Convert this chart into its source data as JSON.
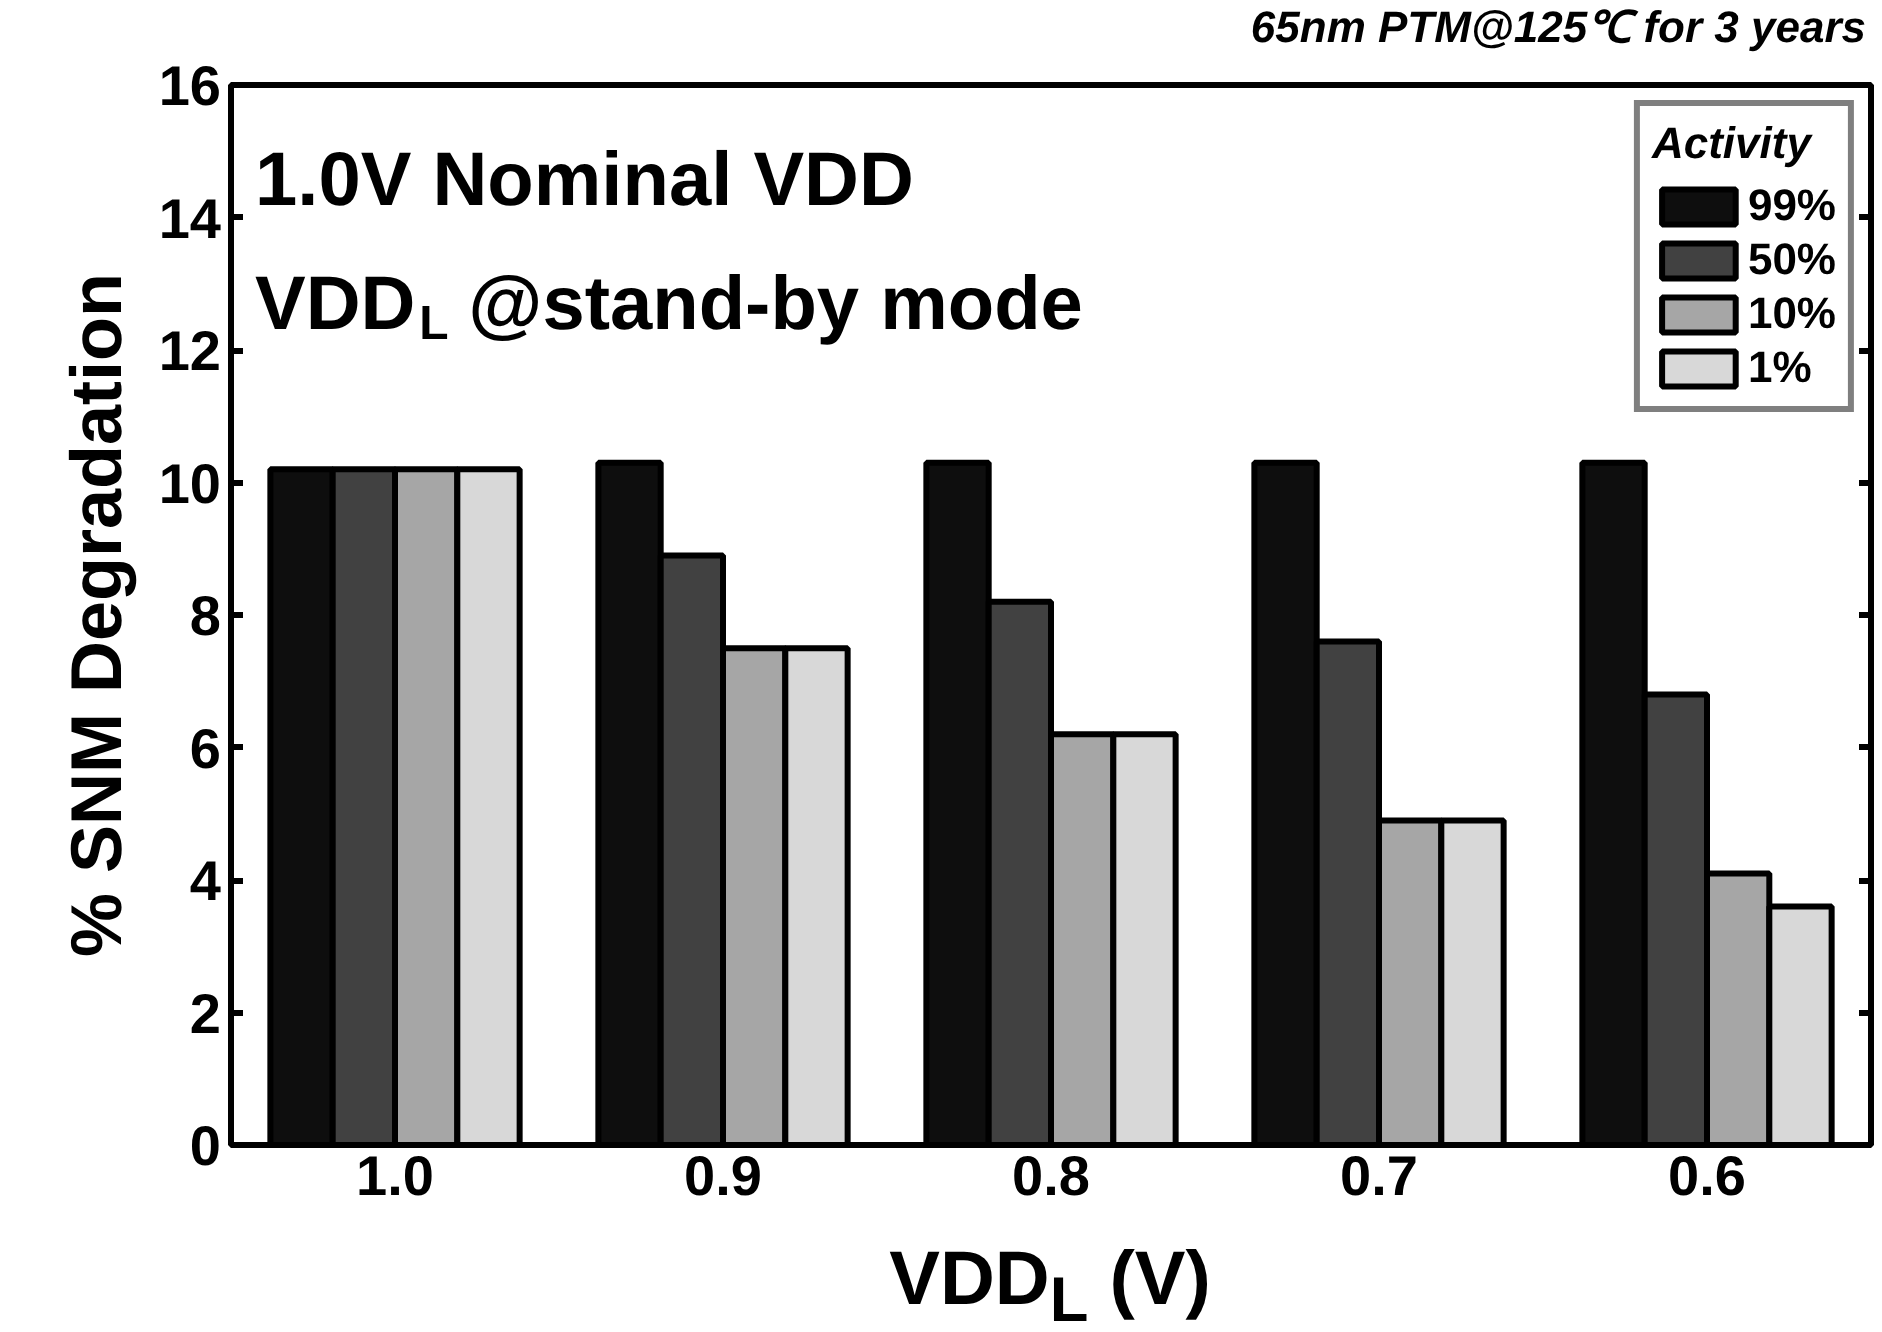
{
  "chart_data": {
    "type": "bar",
    "title": "1.0V Nominal VDD",
    "subtitle": "VDD$_{L}$ @stand-by mode",
    "annotations": [
      "65nm PTM@125℃ for 3 years"
    ],
    "xlabel": "VDD$_{L}$ (V)",
    "ylabel": "% SNM Degradation",
    "legend_title": "Activity",
    "legend": "top right",
    "categories": [
      "1.0",
      "0.9",
      "0.8",
      "0.7",
      "0.6"
    ],
    "series": [
      {
        "name": "99%",
        "color": "#0e0e0e",
        "values": [
          10.2,
          10.3,
          10.3,
          10.3,
          10.3
        ]
      },
      {
        "name": "50%",
        "color": "#414141",
        "values": [
          10.2,
          8.9,
          8.2,
          7.6,
          6.8
        ]
      },
      {
        "name": "10%",
        "color": "#a6a6a6",
        "values": [
          10.2,
          7.5,
          6.2,
          4.9,
          4.1
        ]
      },
      {
        "name": "1%",
        "color": "#d8d8d8",
        "values": [
          10.2,
          7.5,
          6.2,
          4.9,
          3.6
        ]
      }
    ],
    "ylim": [
      0,
      16
    ],
    "yticks": [
      0,
      2,
      4,
      6,
      8,
      10,
      12,
      14,
      16
    ],
    "grid": false
  }
}
